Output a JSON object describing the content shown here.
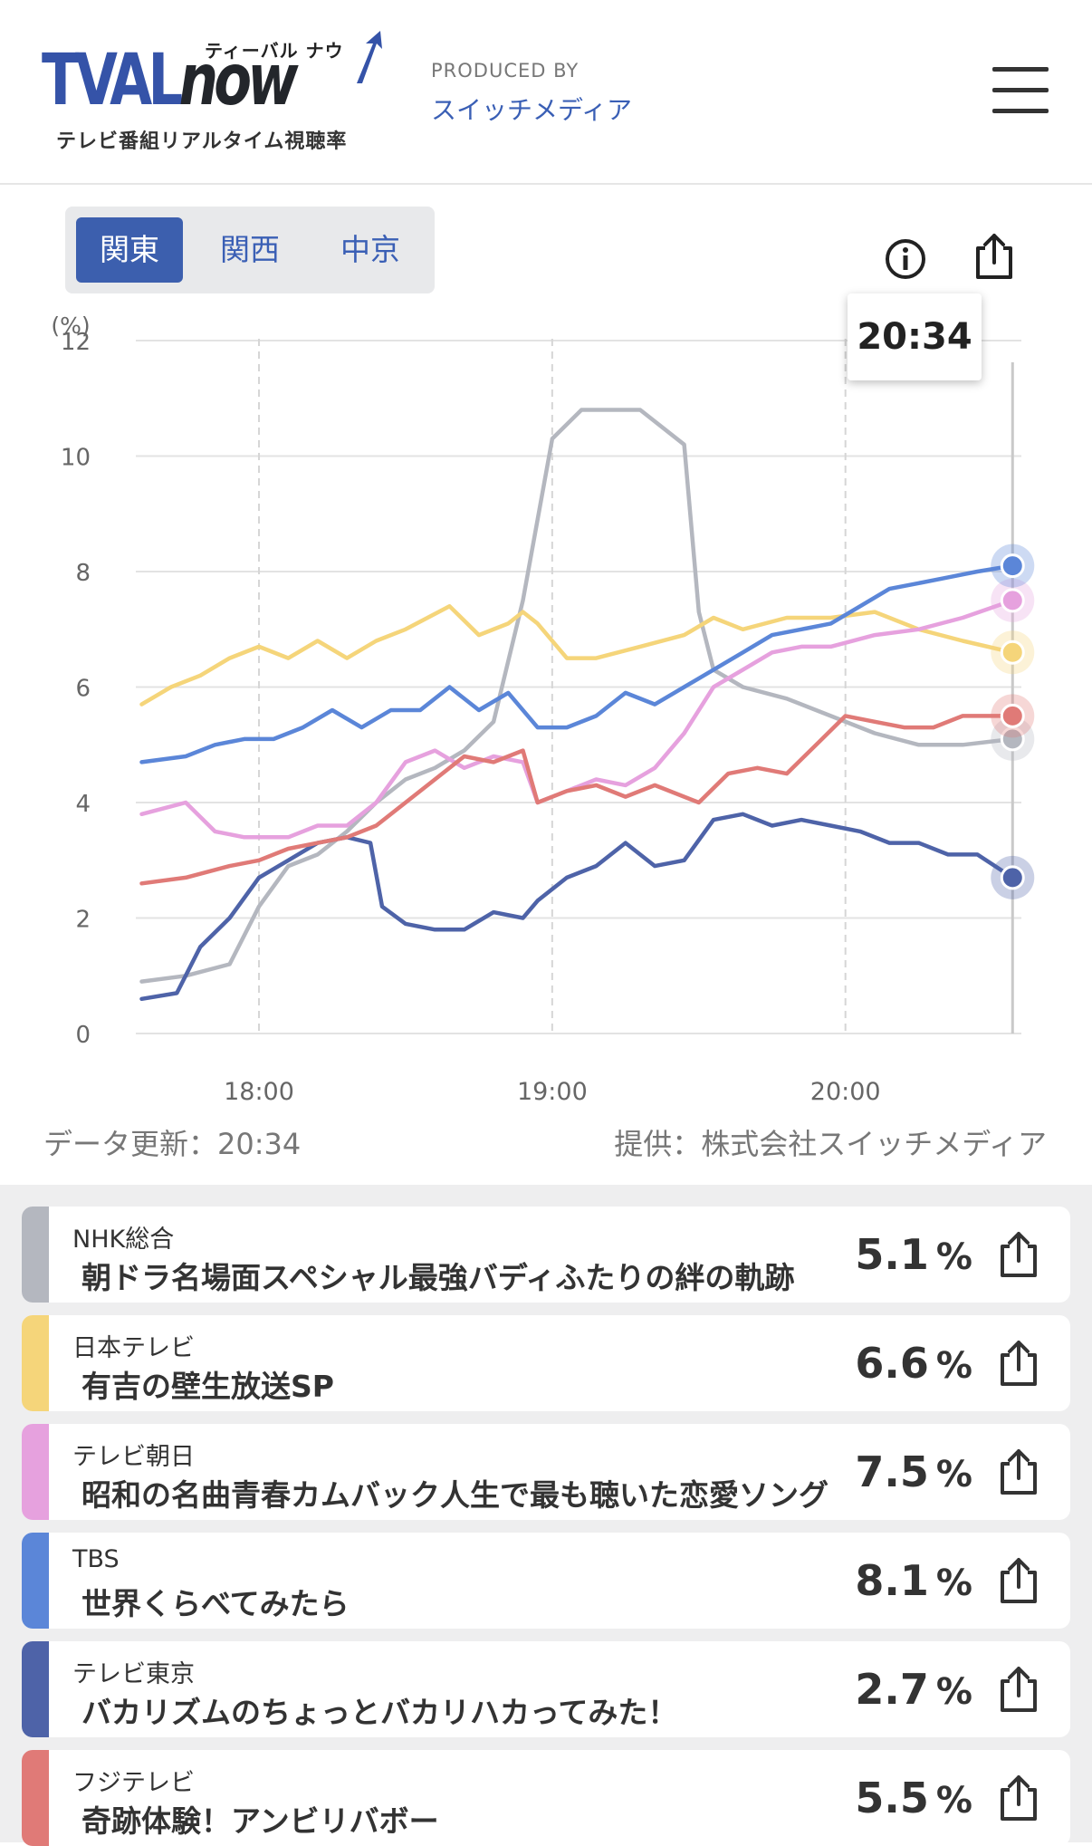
{
  "header": {
    "logo_text_tval": "TVAL",
    "logo_text_now": "now",
    "logo_kana": "ティーバル ナウ",
    "logo_subtitle": "テレビ番組リアルタイム視聴率",
    "produced_by": "PRODUCED BY",
    "producer": "スイッチメディア",
    "menu_icon": "hamburger-menu-icon"
  },
  "region_tabs": [
    {
      "label": "関東",
      "active": true
    },
    {
      "label": "関西",
      "active": false
    },
    {
      "label": "中京",
      "active": false
    }
  ],
  "toolbar": {
    "info_icon": "info-icon",
    "share_icon": "share-icon"
  },
  "tooltip_time": "20:34",
  "footer_chart": {
    "update_label": "データ更新：20:34",
    "provider_label": "提供：株式会社スイッチメディア"
  },
  "chart_data": {
    "type": "line",
    "ylabel": "(%)",
    "ylim": [
      0,
      12
    ],
    "yticks": [
      "0",
      "2",
      "4",
      "6",
      "8",
      "10",
      "12"
    ],
    "xlim": [
      17.58,
      20.6
    ],
    "xticks": [
      {
        "x": 18.0,
        "label": "18:00"
      },
      {
        "x": 19.0,
        "label": "19:00"
      },
      {
        "x": 20.0,
        "label": "20:00"
      }
    ],
    "cursor_time": 20.57,
    "series": [
      {
        "name": "NHK総合",
        "color": "#b4b7bf",
        "points": [
          [
            17.6,
            0.9
          ],
          [
            17.75,
            1.0
          ],
          [
            17.9,
            1.2
          ],
          [
            18.0,
            2.2
          ],
          [
            18.1,
            2.9
          ],
          [
            18.2,
            3.1
          ],
          [
            18.3,
            3.5
          ],
          [
            18.4,
            4.0
          ],
          [
            18.5,
            4.4
          ],
          [
            18.6,
            4.6
          ],
          [
            18.7,
            4.9
          ],
          [
            18.8,
            5.4
          ],
          [
            18.9,
            7.5
          ],
          [
            19.0,
            10.3
          ],
          [
            19.1,
            10.8
          ],
          [
            19.2,
            10.8
          ],
          [
            19.3,
            10.8
          ],
          [
            19.45,
            10.2
          ],
          [
            19.5,
            7.3
          ],
          [
            19.55,
            6.3
          ],
          [
            19.65,
            6.0
          ],
          [
            19.8,
            5.8
          ],
          [
            19.95,
            5.5
          ],
          [
            20.1,
            5.2
          ],
          [
            20.25,
            5.0
          ],
          [
            20.4,
            5.0
          ],
          [
            20.57,
            5.1
          ]
        ]
      },
      {
        "name": "日本テレビ",
        "color": "#f5d57a",
        "points": [
          [
            17.6,
            5.7
          ],
          [
            17.7,
            6.0
          ],
          [
            17.8,
            6.2
          ],
          [
            17.9,
            6.5
          ],
          [
            18.0,
            6.7
          ],
          [
            18.1,
            6.5
          ],
          [
            18.2,
            6.8
          ],
          [
            18.3,
            6.5
          ],
          [
            18.4,
            6.8
          ],
          [
            18.5,
            7.0
          ],
          [
            18.65,
            7.4
          ],
          [
            18.75,
            6.9
          ],
          [
            18.85,
            7.1
          ],
          [
            18.9,
            7.3
          ],
          [
            18.95,
            7.1
          ],
          [
            19.05,
            6.5
          ],
          [
            19.15,
            6.5
          ],
          [
            19.3,
            6.7
          ],
          [
            19.45,
            6.9
          ],
          [
            19.55,
            7.2
          ],
          [
            19.65,
            7.0
          ],
          [
            19.8,
            7.2
          ],
          [
            19.95,
            7.2
          ],
          [
            20.1,
            7.3
          ],
          [
            20.25,
            7.0
          ],
          [
            20.4,
            6.8
          ],
          [
            20.57,
            6.6
          ]
        ]
      },
      {
        "name": "テレビ朝日",
        "color": "#e6a1de",
        "points": [
          [
            17.6,
            3.8
          ],
          [
            17.75,
            4.0
          ],
          [
            17.85,
            3.5
          ],
          [
            17.95,
            3.4
          ],
          [
            18.1,
            3.4
          ],
          [
            18.2,
            3.6
          ],
          [
            18.3,
            3.6
          ],
          [
            18.4,
            4.0
          ],
          [
            18.5,
            4.7
          ],
          [
            18.6,
            4.9
          ],
          [
            18.7,
            4.6
          ],
          [
            18.8,
            4.8
          ],
          [
            18.9,
            4.7
          ],
          [
            18.95,
            4.0
          ],
          [
            19.05,
            4.2
          ],
          [
            19.15,
            4.4
          ],
          [
            19.25,
            4.3
          ],
          [
            19.35,
            4.6
          ],
          [
            19.45,
            5.2
          ],
          [
            19.55,
            6.0
          ],
          [
            19.65,
            6.3
          ],
          [
            19.75,
            6.6
          ],
          [
            19.85,
            6.7
          ],
          [
            19.95,
            6.7
          ],
          [
            20.1,
            6.9
          ],
          [
            20.25,
            7.0
          ],
          [
            20.4,
            7.2
          ],
          [
            20.57,
            7.5
          ]
        ]
      },
      {
        "name": "TBS",
        "color": "#5b86d8",
        "points": [
          [
            17.6,
            4.7
          ],
          [
            17.75,
            4.8
          ],
          [
            17.85,
            5.0
          ],
          [
            17.95,
            5.1
          ],
          [
            18.05,
            5.1
          ],
          [
            18.15,
            5.3
          ],
          [
            18.25,
            5.6
          ],
          [
            18.35,
            5.3
          ],
          [
            18.45,
            5.6
          ],
          [
            18.55,
            5.6
          ],
          [
            18.65,
            6.0
          ],
          [
            18.75,
            5.6
          ],
          [
            18.85,
            5.9
          ],
          [
            18.95,
            5.3
          ],
          [
            19.05,
            5.3
          ],
          [
            19.15,
            5.5
          ],
          [
            19.25,
            5.9
          ],
          [
            19.35,
            5.7
          ],
          [
            19.45,
            6.0
          ],
          [
            19.55,
            6.3
          ],
          [
            19.65,
            6.6
          ],
          [
            19.75,
            6.9
          ],
          [
            19.85,
            7.0
          ],
          [
            19.95,
            7.1
          ],
          [
            20.05,
            7.4
          ],
          [
            20.15,
            7.7
          ],
          [
            20.25,
            7.8
          ],
          [
            20.35,
            7.9
          ],
          [
            20.45,
            8.0
          ],
          [
            20.57,
            8.1
          ]
        ]
      },
      {
        "name": "テレビ東京",
        "color": "#4e63a8",
        "points": [
          [
            17.6,
            0.6
          ],
          [
            17.72,
            0.7
          ],
          [
            17.8,
            1.5
          ],
          [
            17.9,
            2.0
          ],
          [
            18.0,
            2.7
          ],
          [
            18.1,
            3.0
          ],
          [
            18.2,
            3.3
          ],
          [
            18.3,
            3.4
          ],
          [
            18.38,
            3.3
          ],
          [
            18.42,
            2.2
          ],
          [
            18.5,
            1.9
          ],
          [
            18.6,
            1.8
          ],
          [
            18.7,
            1.8
          ],
          [
            18.8,
            2.1
          ],
          [
            18.9,
            2.0
          ],
          [
            18.95,
            2.3
          ],
          [
            19.05,
            2.7
          ],
          [
            19.15,
            2.9
          ],
          [
            19.25,
            3.3
          ],
          [
            19.35,
            2.9
          ],
          [
            19.45,
            3.0
          ],
          [
            19.55,
            3.7
          ],
          [
            19.65,
            3.8
          ],
          [
            19.75,
            3.6
          ],
          [
            19.85,
            3.7
          ],
          [
            19.95,
            3.6
          ],
          [
            20.05,
            3.5
          ],
          [
            20.15,
            3.3
          ],
          [
            20.25,
            3.3
          ],
          [
            20.35,
            3.1
          ],
          [
            20.45,
            3.1
          ],
          [
            20.57,
            2.7
          ]
        ]
      },
      {
        "name": "フジテレビ",
        "color": "#e07a77",
        "points": [
          [
            17.6,
            2.6
          ],
          [
            17.75,
            2.7
          ],
          [
            17.9,
            2.9
          ],
          [
            18.0,
            3.0
          ],
          [
            18.1,
            3.2
          ],
          [
            18.2,
            3.3
          ],
          [
            18.3,
            3.4
          ],
          [
            18.4,
            3.6
          ],
          [
            18.5,
            4.0
          ],
          [
            18.6,
            4.4
          ],
          [
            18.7,
            4.8
          ],
          [
            18.8,
            4.7
          ],
          [
            18.9,
            4.9
          ],
          [
            18.95,
            4.0
          ],
          [
            19.05,
            4.2
          ],
          [
            19.15,
            4.3
          ],
          [
            19.25,
            4.1
          ],
          [
            19.35,
            4.3
          ],
          [
            19.5,
            4.0
          ],
          [
            19.6,
            4.5
          ],
          [
            19.7,
            4.6
          ],
          [
            19.8,
            4.5
          ],
          [
            19.9,
            5.0
          ],
          [
            20.0,
            5.5
          ],
          [
            20.1,
            5.4
          ],
          [
            20.2,
            5.3
          ],
          [
            20.3,
            5.3
          ],
          [
            20.4,
            5.5
          ],
          [
            20.57,
            5.5
          ]
        ]
      }
    ]
  },
  "channels": [
    {
      "station": "NHK総合",
      "program": "朝ドラ名場面スペシャル最強バディふたりの絆の軌跡",
      "rating": "5.1",
      "unit": "%",
      "color": "#b4b7bf"
    },
    {
      "station": "日本テレビ",
      "program": "有吉の壁生放送SP",
      "rating": "6.6",
      "unit": "%",
      "color": "#f5d57a"
    },
    {
      "station": "テレビ朝日",
      "program": "昭和の名曲青春カムバック人生で最も聴いた恋愛ソング",
      "rating": "7.5",
      "unit": "%",
      "color": "#e6a1de"
    },
    {
      "station": "TBS",
      "program": "世界くらべてみたら",
      "rating": "8.1",
      "unit": "%",
      "color": "#5b86d8"
    },
    {
      "station": "テレビ東京",
      "program": "バカリズムのちょっとバカリハカってみた！",
      "rating": "2.7",
      "unit": "%",
      "color": "#4e63a8"
    },
    {
      "station": "フジテレビ",
      "program": "奇跡体験！アンビリバボー",
      "rating": "5.5",
      "unit": "%",
      "color": "#e07a77"
    }
  ]
}
